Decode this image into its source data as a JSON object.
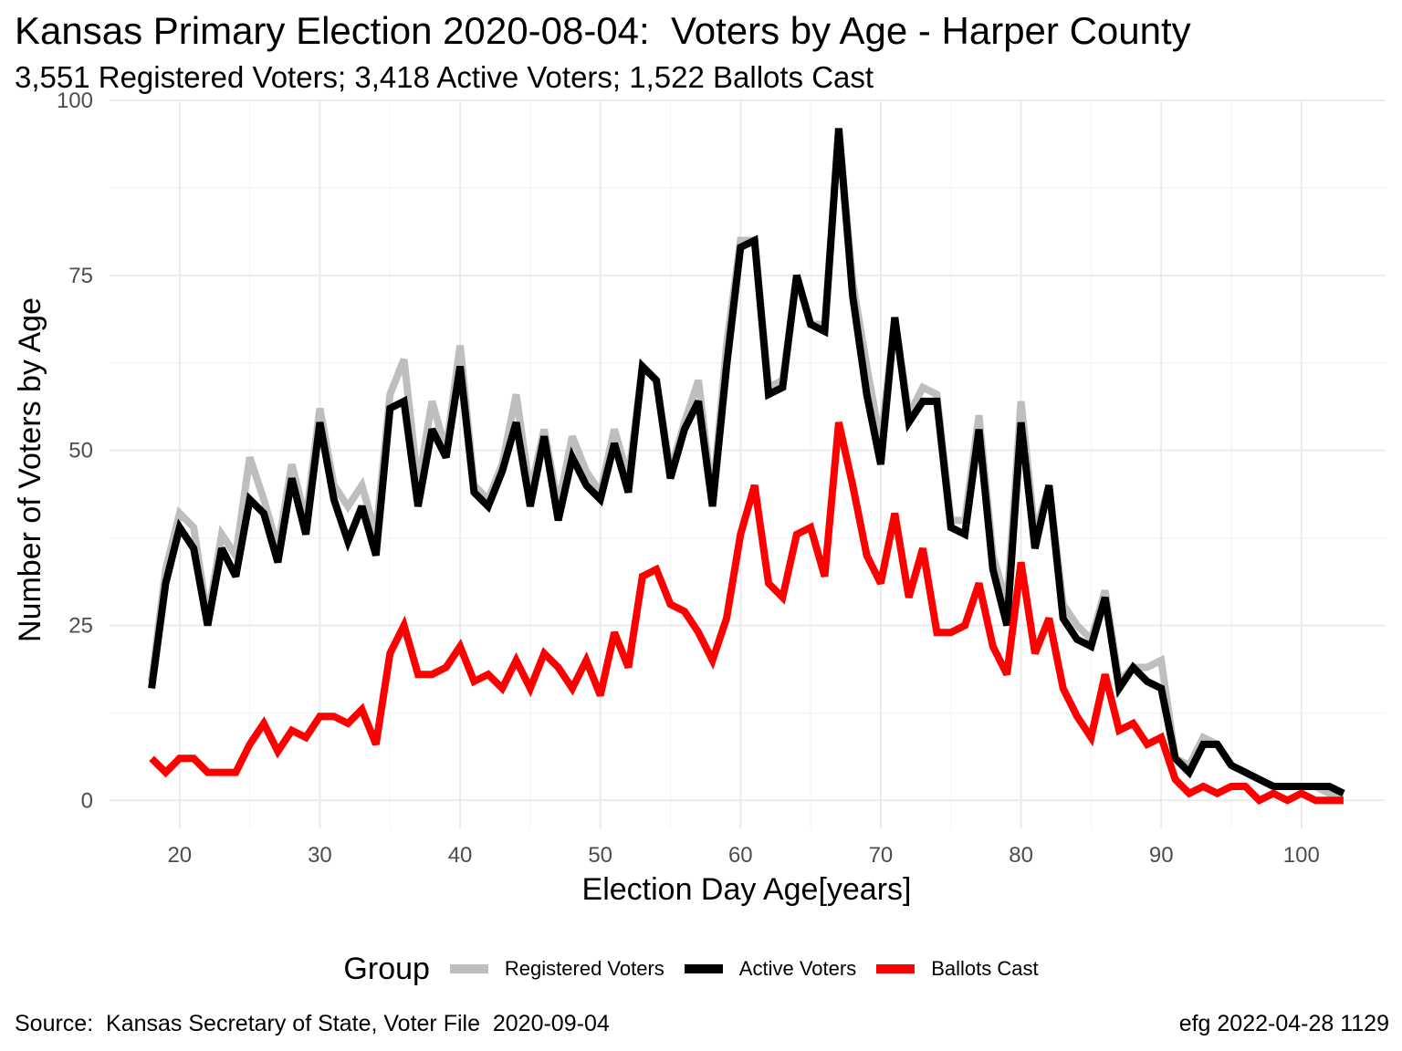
{
  "title": "Kansas Primary Election 2020-08-04:  Voters by Age - Harper County",
  "subtitle": "3,551 Registered Voters; 3,418 Active Voters; 1,522 Ballots Cast",
  "source": "Source:  Kansas Secretary of State, Voter File  2020-09-04",
  "stamp": "efg 2022-04-28 1129",
  "legend": {
    "title": "Group",
    "items": [
      {
        "label": "Registered Voters",
        "color": "#bebebe"
      },
      {
        "label": "Active Voters",
        "color": "#000000"
      },
      {
        "label": "Ballots Cast",
        "color": "#ff0000"
      }
    ]
  },
  "chart_data": {
    "type": "line",
    "xlabel": "Election Day Age[years]",
    "ylabel": "Number of Voters by Age",
    "xlim": [
      15,
      106
    ],
    "ylim": [
      -4,
      100
    ],
    "xticks": [
      20,
      30,
      40,
      50,
      60,
      70,
      80,
      90,
      100
    ],
    "yticks": [
      0,
      25,
      50,
      75,
      100
    ],
    "grid": true,
    "legend_position": "bottom",
    "x": [
      18,
      19,
      20,
      21,
      22,
      23,
      24,
      25,
      26,
      27,
      28,
      29,
      30,
      31,
      32,
      33,
      34,
      35,
      36,
      37,
      38,
      39,
      40,
      41,
      42,
      43,
      44,
      45,
      46,
      47,
      48,
      49,
      50,
      51,
      52,
      53,
      54,
      55,
      56,
      57,
      58,
      59,
      60,
      61,
      62,
      63,
      64,
      65,
      66,
      67,
      68,
      69,
      70,
      71,
      72,
      73,
      74,
      75,
      76,
      77,
      78,
      79,
      80,
      81,
      82,
      83,
      84,
      85,
      86,
      87,
      88,
      89,
      90,
      91,
      92,
      93,
      94,
      95,
      96,
      97,
      98,
      99,
      100,
      101,
      102,
      103
    ],
    "series": [
      {
        "name": "Registered Voters",
        "color": "#bebebe",
        "values": [
          17,
          33,
          41,
          39,
          26,
          38,
          35,
          49,
          43,
          36,
          48,
          40,
          56,
          45,
          42,
          45,
          38,
          58,
          63,
          45,
          57,
          50,
          65,
          45,
          43,
          48,
          58,
          44,
          53,
          42,
          52,
          47,
          44,
          53,
          46,
          62,
          60,
          47,
          54,
          60,
          43,
          65,
          80,
          80,
          59,
          60,
          75,
          68,
          68,
          96,
          74,
          62,
          51,
          69,
          55,
          59,
          58,
          40,
          40,
          55,
          35,
          28,
          57,
          38,
          45,
          28,
          25,
          23,
          30,
          17,
          19,
          19,
          20,
          6,
          5,
          9,
          8,
          5,
          4,
          3,
          2,
          2,
          2,
          2,
          1,
          1
        ]
      },
      {
        "name": "Active Voters",
        "color": "#000000",
        "values": [
          16,
          31,
          39,
          36,
          25,
          36,
          32,
          43,
          41,
          34,
          46,
          38,
          54,
          43,
          37,
          42,
          35,
          56,
          57,
          42,
          53,
          49,
          62,
          44,
          42,
          47,
          54,
          42,
          52,
          40,
          49,
          45,
          43,
          51,
          44,
          62,
          60,
          46,
          53,
          57,
          42,
          62,
          79,
          80,
          58,
          59,
          75,
          68,
          67,
          96,
          72,
          58,
          48,
          69,
          54,
          57,
          57,
          39,
          38,
          53,
          33,
          25,
          54,
          36,
          45,
          26,
          23,
          22,
          29,
          16,
          19,
          17,
          16,
          6,
          4,
          8,
          8,
          5,
          4,
          3,
          2,
          2,
          2,
          2,
          2,
          1
        ]
      },
      {
        "name": "Ballots Cast",
        "color": "#ff0000",
        "values": [
          6,
          4,
          6,
          6,
          4,
          4,
          4,
          8,
          11,
          7,
          10,
          9,
          12,
          12,
          11,
          13,
          8,
          21,
          25,
          18,
          18,
          19,
          22,
          17,
          18,
          16,
          20,
          16,
          21,
          19,
          16,
          20,
          15,
          24,
          19,
          32,
          33,
          28,
          27,
          24,
          20,
          26,
          38,
          45,
          31,
          29,
          38,
          39,
          32,
          54,
          45,
          35,
          31,
          41,
          29,
          36,
          24,
          24,
          25,
          31,
          22,
          18,
          34,
          21,
          26,
          16,
          12,
          9,
          18,
          10,
          11,
          8,
          9,
          3,
          1,
          2,
          1,
          2,
          2,
          0,
          1,
          0,
          1,
          0,
          0,
          0
        ]
      }
    ]
  }
}
